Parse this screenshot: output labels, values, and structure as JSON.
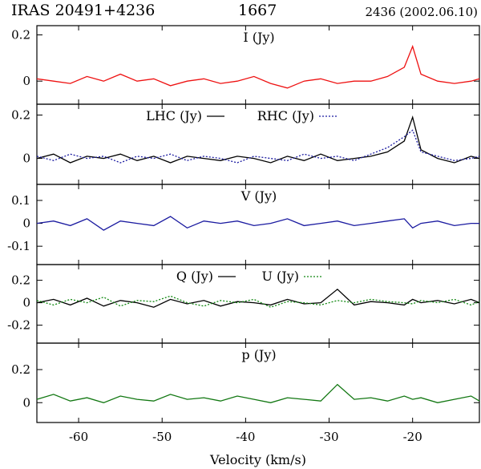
{
  "header": {
    "source": "IRAS 20491+4236",
    "line": "1667",
    "epoch": "2436 (2002.06.10)"
  },
  "colors": {
    "I": "#ee1111",
    "LHC": "#000000",
    "RHC": "#1a1aa0",
    "V": "#1a1aa0",
    "Q": "#000000",
    "U": "#118811",
    "p": "#117711"
  },
  "chart_data": {
    "type": "line",
    "xlabel": "Velocity (km/s)",
    "xlim": [
      -65,
      -12
    ],
    "xticks": [
      -60,
      -50,
      -40,
      -30,
      -20
    ],
    "xtick_labels": [
      "-60",
      "-50",
      "-40",
      "-30",
      "-20"
    ],
    "panels": [
      {
        "key": "I",
        "ylim": [
          -0.1,
          0.24
        ],
        "yticks": [
          0,
          0.2
        ],
        "ytick_labels": [
          "0",
          "0.2"
        ],
        "legend": [
          {
            "label": "I (Jy)",
            "line": ""
          }
        ],
        "series": [
          {
            "name": "I (Jy)",
            "style": "solid",
            "x": [
              -65,
              -63,
              -61,
              -59,
              -57,
              -55,
              -53,
              -51,
              -49,
              -47,
              -45,
              -43,
              -41,
              -39,
              -37,
              -35,
              -33,
              -31,
              -29,
              -27,
              -25,
              -23,
              -21,
              -20,
              -19,
              -17,
              -15,
              -13,
              -12
            ],
            "y": [
              0.01,
              0.0,
              -0.01,
              0.02,
              0.0,
              0.03,
              0.0,
              0.01,
              -0.02,
              0.0,
              0.01,
              -0.01,
              0.0,
              0.02,
              -0.01,
              -0.03,
              0.0,
              0.01,
              -0.01,
              0.0,
              0.0,
              0.02,
              0.06,
              0.15,
              0.03,
              0.0,
              -0.01,
              0.0,
              0.01
            ]
          }
        ]
      },
      {
        "key": "LHC_RHC",
        "ylim": [
          -0.12,
          0.25
        ],
        "yticks": [
          0,
          0.2
        ],
        "ytick_labels": [
          "0",
          "0.2"
        ],
        "legend": [
          {
            "label": "LHC (Jy)",
            "line": "solid"
          },
          {
            "label": "RHC (Jy)",
            "line": "dotted"
          }
        ],
        "series": [
          {
            "name": "LHC (Jy)",
            "style": "solid",
            "x": [
              -65,
              -63,
              -61,
              -59,
              -57,
              -55,
              -53,
              -51,
              -49,
              -47,
              -45,
              -43,
              -41,
              -39,
              -37,
              -35,
              -33,
              -31,
              -29,
              -27,
              -25,
              -23,
              -21,
              -20,
              -19,
              -17,
              -15,
              -13,
              -12
            ],
            "y": [
              0.0,
              0.02,
              -0.02,
              0.01,
              0.0,
              0.02,
              -0.01,
              0.01,
              -0.02,
              0.01,
              0.0,
              -0.01,
              0.01,
              0.0,
              -0.02,
              0.01,
              -0.01,
              0.02,
              -0.01,
              0.0,
              0.01,
              0.03,
              0.08,
              0.19,
              0.04,
              0.0,
              -0.02,
              0.01,
              0.0
            ]
          },
          {
            "name": "RHC (Jy)",
            "style": "dotted",
            "x": [
              -65,
              -63,
              -61,
              -59,
              -57,
              -55,
              -53,
              -51,
              -49,
              -47,
              -45,
              -43,
              -41,
              -39,
              -37,
              -35,
              -33,
              -31,
              -29,
              -27,
              -25,
              -23,
              -21,
              -20,
              -19,
              -17,
              -15,
              -13,
              -12
            ],
            "y": [
              0.01,
              -0.01,
              0.02,
              0.0,
              0.01,
              -0.02,
              0.01,
              0.0,
              0.02,
              -0.01,
              0.01,
              0.0,
              -0.02,
              0.01,
              0.0,
              -0.01,
              0.02,
              0.0,
              0.01,
              -0.01,
              0.02,
              0.05,
              0.1,
              0.13,
              0.03,
              0.01,
              -0.01,
              0.0,
              0.01
            ]
          }
        ]
      },
      {
        "key": "V",
        "ylim": [
          -0.18,
          0.17
        ],
        "yticks": [
          -0.1,
          0,
          0.1
        ],
        "ytick_labels": [
          "-0.1",
          "0",
          "0.1"
        ],
        "legend": [
          {
            "label": "V (Jy)",
            "line": ""
          }
        ],
        "series": [
          {
            "name": "V (Jy)",
            "style": "solid",
            "x": [
              -65,
              -63,
              -61,
              -59,
              -57,
              -55,
              -53,
              -51,
              -49,
              -47,
              -45,
              -43,
              -41,
              -39,
              -37,
              -35,
              -33,
              -31,
              -29,
              -27,
              -25,
              -23,
              -21,
              -20,
              -19,
              -17,
              -15,
              -13,
              -12
            ],
            "y": [
              0.0,
              0.01,
              -0.01,
              0.02,
              -0.03,
              0.01,
              0.0,
              -0.01,
              0.03,
              -0.02,
              0.01,
              0.0,
              0.01,
              -0.01,
              0.0,
              0.02,
              -0.01,
              0.0,
              0.01,
              -0.01,
              0.0,
              0.01,
              0.02,
              -0.02,
              0.0,
              0.01,
              -0.01,
              0.0,
              0.0
            ]
          }
        ]
      },
      {
        "key": "Q_U",
        "ylim": [
          -0.36,
          0.34
        ],
        "yticks": [
          -0.2,
          0,
          0.2
        ],
        "ytick_labels": [
          "-0.2",
          "0",
          "0.2"
        ],
        "legend": [
          {
            "label": "Q (Jy)",
            "line": "solid"
          },
          {
            "label": "U (Jy)",
            "line": "dotted"
          }
        ],
        "series": [
          {
            "name": "Q (Jy)",
            "style": "solid",
            "x": [
              -65,
              -63,
              -61,
              -59,
              -57,
              -55,
              -53,
              -51,
              -49,
              -47,
              -45,
              -43,
              -41,
              -39,
              -37,
              -35,
              -33,
              -31,
              -29,
              -27,
              -25,
              -23,
              -21,
              -20,
              -19,
              -17,
              -15,
              -13,
              -12
            ],
            "y": [
              0.0,
              0.03,
              -0.02,
              0.04,
              -0.03,
              0.02,
              0.0,
              -0.04,
              0.03,
              -0.01,
              0.02,
              -0.03,
              0.01,
              0.0,
              -0.02,
              0.03,
              -0.01,
              0.0,
              0.12,
              -0.02,
              0.01,
              0.0,
              -0.02,
              0.03,
              0.0,
              0.02,
              -0.01,
              0.03,
              0.0
            ]
          },
          {
            "name": "U (Jy)",
            "style": "dotted",
            "x": [
              -65,
              -63,
              -61,
              -59,
              -57,
              -55,
              -53,
              -51,
              -49,
              -47,
              -45,
              -43,
              -41,
              -39,
              -37,
              -35,
              -33,
              -31,
              -29,
              -27,
              -25,
              -23,
              -21,
              -20,
              -19,
              -17,
              -15,
              -13,
              -12
            ],
            "y": [
              0.02,
              -0.02,
              0.03,
              0.0,
              0.05,
              -0.03,
              0.02,
              0.01,
              0.06,
              0.0,
              -0.03,
              0.02,
              0.0,
              0.03,
              -0.04,
              0.01,
              0.0,
              -0.02,
              0.02,
              0.0,
              0.03,
              0.01,
              0.0,
              -0.01,
              0.02,
              0.0,
              0.03,
              -0.02,
              0.01
            ]
          }
        ]
      },
      {
        "key": "p",
        "ylim": [
          -0.12,
          0.36
        ],
        "yticks": [
          0,
          0.2
        ],
        "ytick_labels": [
          "0",
          "0.2"
        ],
        "legend": [
          {
            "label": "p (Jy)",
            "line": ""
          }
        ],
        "series": [
          {
            "name": "p (Jy)",
            "style": "solid",
            "x": [
              -65,
              -63,
              -61,
              -59,
              -57,
              -55,
              -53,
              -51,
              -49,
              -47,
              -45,
              -43,
              -41,
              -39,
              -37,
              -35,
              -33,
              -31,
              -29,
              -27,
              -25,
              -23,
              -21,
              -20,
              -19,
              -17,
              -15,
              -13,
              -12
            ],
            "y": [
              0.02,
              0.05,
              0.01,
              0.03,
              0.0,
              0.04,
              0.02,
              0.01,
              0.05,
              0.02,
              0.03,
              0.01,
              0.04,
              0.02,
              0.0,
              0.03,
              0.02,
              0.01,
              0.11,
              0.02,
              0.03,
              0.01,
              0.04,
              0.02,
              0.03,
              0.0,
              0.02,
              0.04,
              0.01
            ]
          }
        ]
      }
    ]
  }
}
